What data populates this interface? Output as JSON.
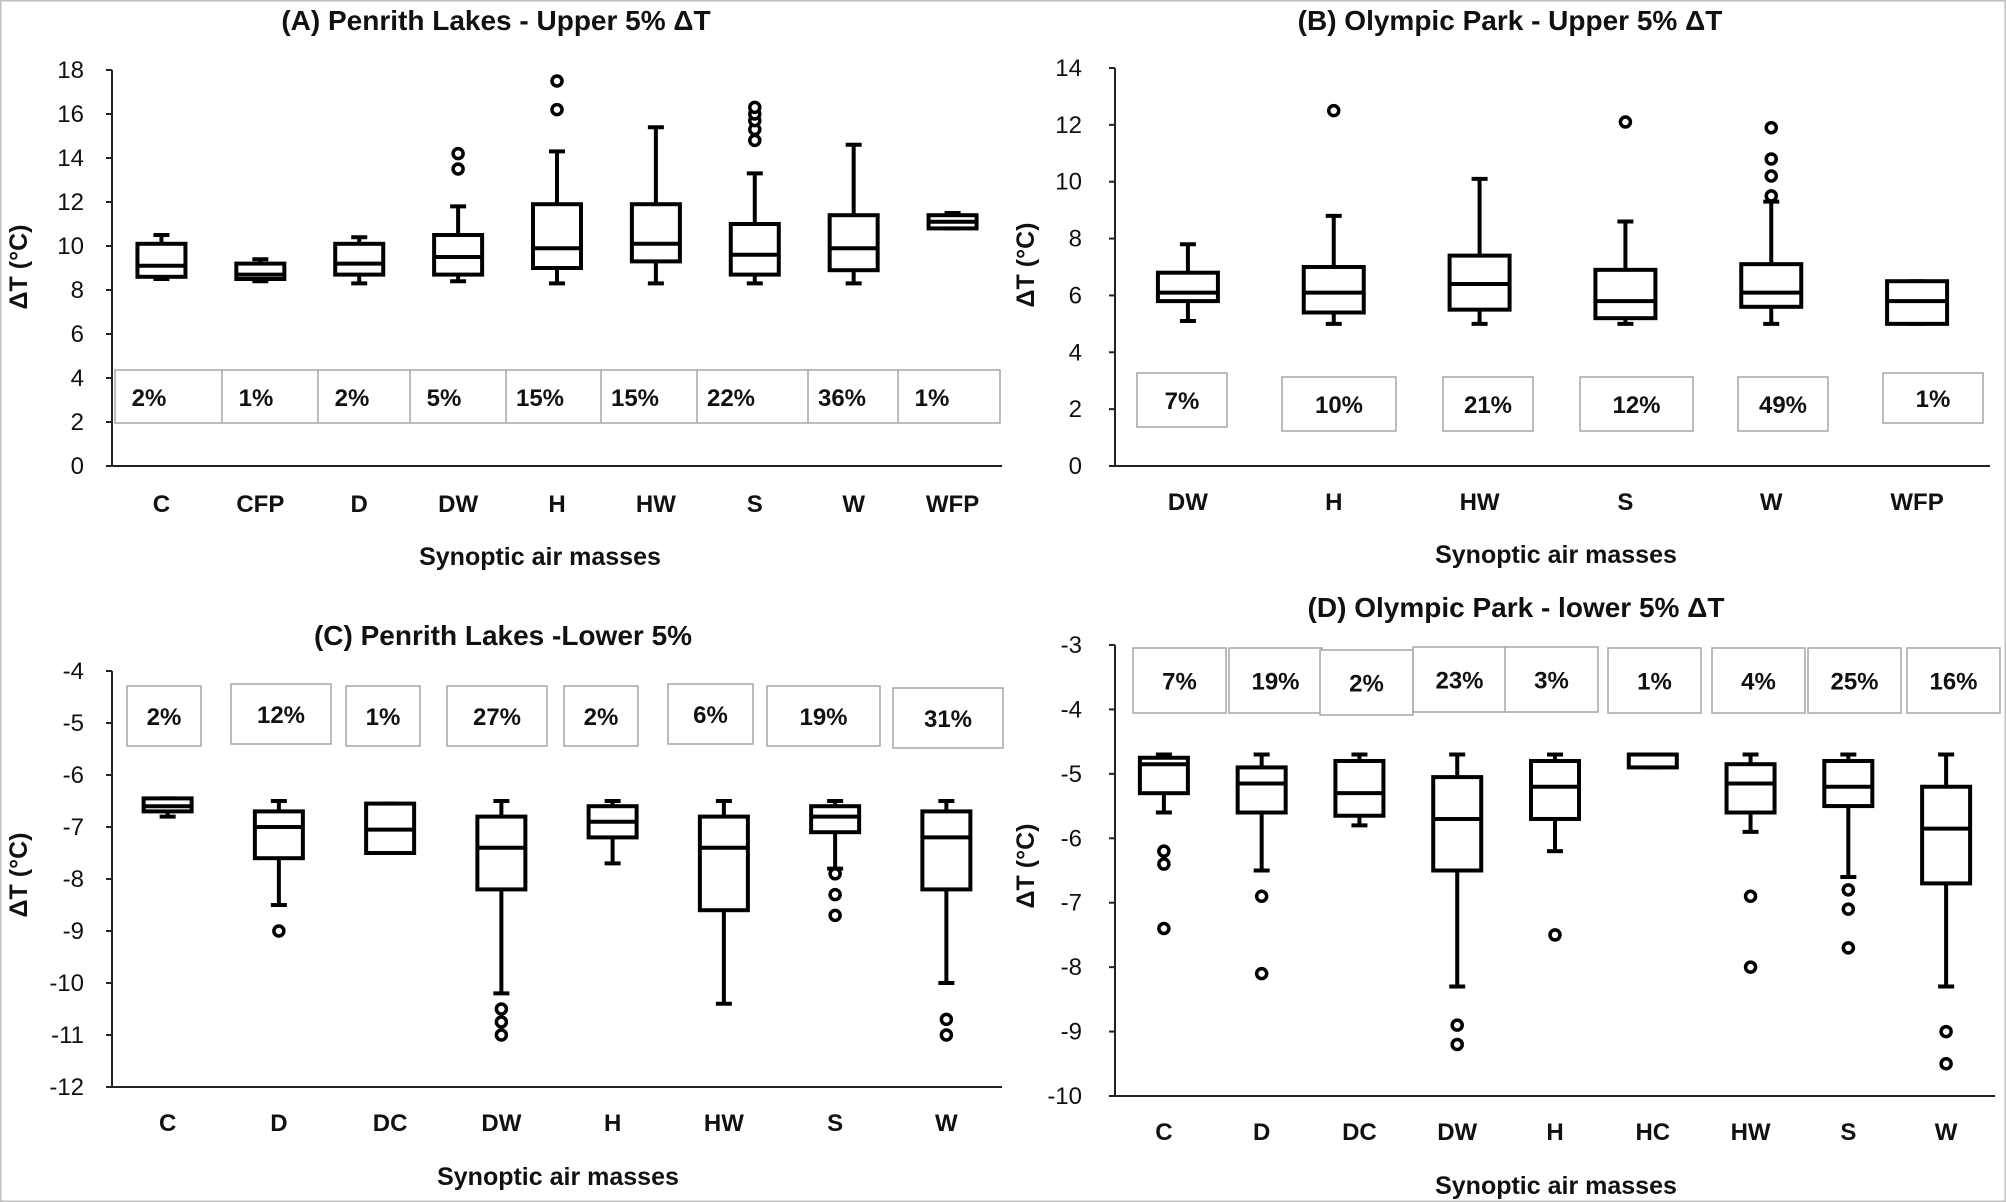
{
  "chart_data": [
    {
      "type": "box",
      "title": "(A) Penrith Lakes - Upper 5% ΔT",
      "xlabel": "Synoptic air masses",
      "ylabel": "ΔT (°C)",
      "ylim": [
        0,
        18
      ],
      "yticks": [
        0,
        2,
        4,
        6,
        8,
        10,
        12,
        14,
        16,
        18
      ],
      "categories": [
        "C",
        "CFP",
        "D",
        "DW",
        "H",
        "HW",
        "S",
        "W",
        "WFP"
      ],
      "percentages": [
        "2%",
        "1%",
        "2%",
        "5%",
        "15%",
        "15%",
        "22%",
        "36%",
        "1%"
      ],
      "boxes": [
        {
          "min": 8.5,
          "q1": 8.6,
          "median": 9.1,
          "q3": 10.1,
          "max": 10.5,
          "outliers": []
        },
        {
          "min": 8.4,
          "q1": 8.5,
          "median": 8.7,
          "q3": 9.2,
          "max": 9.4,
          "outliers": []
        },
        {
          "min": 8.3,
          "q1": 8.7,
          "median": 9.2,
          "q3": 10.1,
          "max": 10.4,
          "outliers": []
        },
        {
          "min": 8.4,
          "q1": 8.7,
          "median": 9.5,
          "q3": 10.5,
          "max": 11.8,
          "outliers": [
            13.5,
            14.2
          ]
        },
        {
          "min": 8.3,
          "q1": 9.0,
          "median": 9.9,
          "q3": 11.9,
          "max": 14.3,
          "outliers": [
            16.2,
            17.5
          ]
        },
        {
          "min": 8.3,
          "q1": 9.3,
          "median": 10.1,
          "q3": 11.9,
          "max": 15.4,
          "outliers": []
        },
        {
          "min": 8.3,
          "q1": 8.7,
          "median": 9.6,
          "q3": 11.0,
          "max": 13.3,
          "outliers": [
            14.8,
            15.3,
            15.7,
            16.0,
            16.3
          ]
        },
        {
          "min": 8.3,
          "q1": 8.9,
          "median": 9.9,
          "q3": 11.4,
          "max": 14.6,
          "outliers": []
        },
        {
          "min": 10.8,
          "q1": 10.8,
          "median": 11.1,
          "q3": 11.4,
          "max": 11.5,
          "outliers": []
        }
      ]
    },
    {
      "type": "box",
      "title": "(B) Olympic Park - Upper 5% ΔT",
      "xlabel": "Synoptic air masses",
      "ylabel": "ΔT (°C)",
      "ylim": [
        0,
        14
      ],
      "yticks": [
        0,
        2,
        4,
        6,
        8,
        10,
        12,
        14
      ],
      "categories": [
        "DW",
        "H",
        "HW",
        "S",
        "W",
        "WFP"
      ],
      "percentages": [
        "7%",
        "10%",
        "21%",
        "12%",
        "49%",
        "1%"
      ],
      "boxes": [
        {
          "min": 5.1,
          "q1": 5.8,
          "median": 6.1,
          "q3": 6.8,
          "max": 7.8,
          "outliers": []
        },
        {
          "min": 5.0,
          "q1": 5.4,
          "median": 6.1,
          "q3": 7.0,
          "max": 8.8,
          "outliers": [
            12.5
          ]
        },
        {
          "min": 5.0,
          "q1": 5.5,
          "median": 6.4,
          "q3": 7.4,
          "max": 10.1,
          "outliers": []
        },
        {
          "min": 5.0,
          "q1": 5.2,
          "median": 5.8,
          "q3": 6.9,
          "max": 8.6,
          "outliers": [
            12.1
          ]
        },
        {
          "min": 5.0,
          "q1": 5.6,
          "median": 6.1,
          "q3": 7.1,
          "max": 9.3,
          "outliers": [
            9.5,
            10.2,
            10.8,
            11.9
          ]
        },
        {
          "min": 5.0,
          "q1": 5.0,
          "median": 5.8,
          "q3": 6.5,
          "max": 6.5,
          "outliers": []
        }
      ]
    },
    {
      "type": "box",
      "title": "(C) Penrith Lakes -Lower 5%",
      "xlabel": "Synoptic air masses",
      "ylabel": "ΔT (°C)",
      "ylim": [
        -12,
        -4
      ],
      "yticks": [
        -4,
        -5,
        -6,
        -7,
        -8,
        -9,
        -10,
        -11,
        -12
      ],
      "categories": [
        "C",
        "D",
        "DC",
        "DW",
        "H",
        "HW",
        "S",
        "W"
      ],
      "percentages": [
        "2%",
        "12%",
        "1%",
        "27%",
        "2%",
        "6%",
        "19%",
        "31%"
      ],
      "boxes": [
        {
          "min": -6.8,
          "q1": -6.7,
          "median": -6.6,
          "q3": -6.45,
          "max": -6.45,
          "outliers": []
        },
        {
          "min": -8.5,
          "q1": -7.6,
          "median": -7.0,
          "q3": -6.7,
          "max": -6.5,
          "outliers": [
            -9.0
          ]
        },
        {
          "min": -7.5,
          "q1": -7.5,
          "median": -7.05,
          "q3": -6.55,
          "max": -6.55,
          "outliers": []
        },
        {
          "min": -10.2,
          "q1": -8.2,
          "median": -7.4,
          "q3": -6.8,
          "max": -6.5,
          "outliers": [
            -10.5,
            -10.75,
            -11.0
          ]
        },
        {
          "min": -7.7,
          "q1": -7.2,
          "median": -6.9,
          "q3": -6.6,
          "max": -6.5,
          "outliers": []
        },
        {
          "min": -10.4,
          "q1": -8.6,
          "median": -7.4,
          "q3": -6.8,
          "max": -6.5,
          "outliers": []
        },
        {
          "min": -7.8,
          "q1": -7.1,
          "median": -6.8,
          "q3": -6.6,
          "max": -6.5,
          "outliers": [
            -7.9,
            -8.3,
            -8.7
          ]
        },
        {
          "min": -10.0,
          "q1": -8.2,
          "median": -7.2,
          "q3": -6.7,
          "max": -6.5,
          "outliers": [
            -10.7,
            -11.0
          ]
        }
      ]
    },
    {
      "type": "box",
      "title": "(D) Olympic Park - lower 5% ΔT",
      "xlabel": "Synoptic air masses",
      "ylabel": "ΔT (°C)",
      "ylim": [
        -10,
        -3
      ],
      "yticks": [
        -3,
        -4,
        -5,
        -6,
        -7,
        -8,
        -9,
        -10
      ],
      "categories": [
        "C",
        "D",
        "DC",
        "DW",
        "H",
        "HC",
        "HW",
        "S",
        "W"
      ],
      "percentages": [
        "7%",
        "19%",
        "2%",
        "23%",
        "3%",
        "1%",
        "4%",
        "25%",
        "16%"
      ],
      "boxes": [
        {
          "min": -5.6,
          "q1": -5.3,
          "median": -4.85,
          "q3": -4.75,
          "max": -4.7,
          "outliers": [
            -6.2,
            -6.4,
            -7.4
          ]
        },
        {
          "min": -6.5,
          "q1": -5.6,
          "median": -5.15,
          "q3": -4.9,
          "max": -4.7,
          "outliers": [
            -6.9,
            -8.1
          ]
        },
        {
          "min": -5.8,
          "q1": -5.65,
          "median": -5.3,
          "q3": -4.8,
          "max": -4.7,
          "outliers": []
        },
        {
          "min": -8.3,
          "q1": -6.5,
          "median": -5.7,
          "q3": -5.05,
          "max": -4.7,
          "outliers": [
            -8.9,
            -9.2
          ]
        },
        {
          "min": -6.2,
          "q1": -5.7,
          "median": -5.2,
          "q3": -4.8,
          "max": -4.7,
          "outliers": [
            -7.5
          ]
        },
        {
          "min": -4.9,
          "q1": -4.9,
          "median": -4.7,
          "q3": -4.7,
          "max": -4.7,
          "outliers": []
        },
        {
          "min": -5.9,
          "q1": -5.6,
          "median": -5.15,
          "q3": -4.85,
          "max": -4.7,
          "outliers": [
            -6.9,
            -8.0
          ]
        },
        {
          "min": -6.6,
          "q1": -5.5,
          "median": -5.2,
          "q3": -4.8,
          "max": -4.7,
          "outliers": [
            -6.8,
            -7.1,
            -7.7
          ]
        },
        {
          "min": -8.3,
          "q1": -6.7,
          "median": -5.85,
          "q3": -5.2,
          "max": -4.7,
          "outliers": [
            -9.0,
            -9.5
          ]
        }
      ]
    }
  ]
}
